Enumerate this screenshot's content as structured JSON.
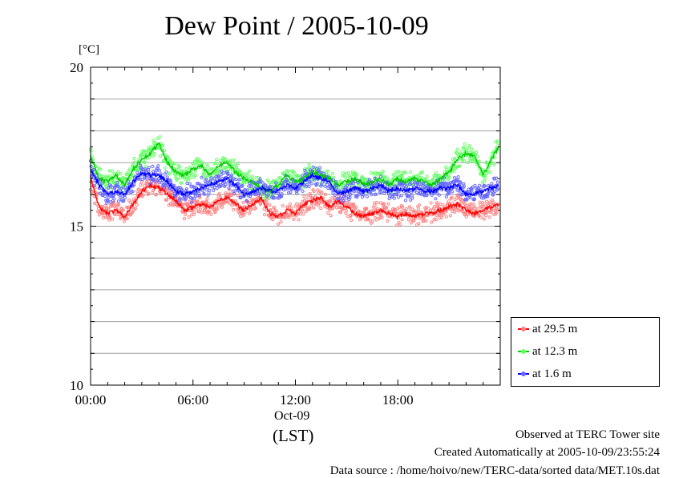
{
  "chart_data": {
    "type": "line",
    "title": "Dew Point / 2005-10-09",
    "ylabel": "[°C]",
    "ylim": [
      10,
      20
    ],
    "yticks": [
      10,
      15,
      20
    ],
    "x_unit": "hours",
    "xlim": [
      0,
      24
    ],
    "xticks": [
      0,
      6,
      12,
      18
    ],
    "xtick_labels": [
      "00:00",
      "06:00",
      "12:00",
      "18:00"
    ],
    "x_date_label": "Oct-09",
    "xlabel": "(LST)",
    "grid": true,
    "legend": "bottom-right outside plot",
    "x": [
      0,
      0.5,
      1,
      1.5,
      2,
      2.5,
      3,
      3.5,
      4,
      4.5,
      5,
      5.5,
      6,
      6.5,
      7,
      7.5,
      8,
      8.5,
      9,
      9.5,
      10,
      10.5,
      11,
      11.5,
      12,
      12.5,
      13,
      13.5,
      14,
      14.5,
      15,
      15.5,
      16,
      16.5,
      17,
      17.5,
      18,
      18.5,
      19,
      19.5,
      20,
      20.5,
      21,
      21.5,
      22,
      22.5,
      23,
      23.5
    ],
    "series": [
      {
        "name": "at 29.5 m",
        "color": "#ff0000",
        "band_color": "#ff8080",
        "values": [
          16.5,
          15.6,
          15.4,
          15.5,
          15.3,
          15.7,
          16.1,
          16.3,
          16.2,
          16.0,
          15.8,
          15.5,
          15.6,
          15.7,
          15.6,
          15.8,
          15.9,
          15.7,
          15.5,
          15.7,
          15.9,
          15.4,
          15.3,
          15.5,
          15.4,
          15.7,
          15.8,
          15.9,
          15.6,
          15.8,
          15.6,
          15.4,
          15.3,
          15.4,
          15.5,
          15.4,
          15.3,
          15.4,
          15.3,
          15.4,
          15.4,
          15.5,
          15.6,
          15.7,
          15.5,
          15.4,
          15.5,
          15.6
        ]
      },
      {
        "name": "at 12.3 m",
        "color": "#00cc00",
        "band_color": "#66ff66",
        "values": [
          17.2,
          16.5,
          16.4,
          16.6,
          16.3,
          16.8,
          17.1,
          17.3,
          17.6,
          17.0,
          16.7,
          16.6,
          16.8,
          16.9,
          16.6,
          16.9,
          17.0,
          16.7,
          16.5,
          16.4,
          16.2,
          16.1,
          16.3,
          16.6,
          16.4,
          16.5,
          16.7,
          16.6,
          16.5,
          16.3,
          16.4,
          16.5,
          16.3,
          16.4,
          16.5,
          16.3,
          16.5,
          16.4,
          16.5,
          16.4,
          16.3,
          16.5,
          16.7,
          17.1,
          17.3,
          17.2,
          16.6,
          17.1
        ]
      },
      {
        "name": "at 1.6 m",
        "color": "#0000ff",
        "band_color": "#6666ff",
        "values": [
          16.8,
          16.3,
          16.0,
          16.1,
          16.0,
          16.4,
          16.7,
          16.6,
          16.6,
          16.4,
          16.1,
          16.0,
          16.1,
          16.2,
          16.3,
          16.4,
          16.5,
          16.3,
          16.0,
          16.1,
          16.2,
          16.1,
          16.1,
          16.3,
          16.2,
          16.4,
          16.6,
          16.5,
          16.4,
          16.0,
          16.1,
          16.2,
          16.1,
          16.2,
          16.3,
          16.1,
          16.2,
          16.1,
          16.2,
          16.1,
          16.1,
          16.2,
          16.2,
          16.3,
          16.0,
          16.0,
          16.1,
          16.2
        ]
      }
    ]
  },
  "footer": {
    "line1": "Observed at TERC Tower site",
    "line2": "Created Automatically at 2005-10-09/23:55:24",
    "line3": "Data source : /home/hoivo/new/TERC-data/sorted  data/MET.10s.dat"
  }
}
